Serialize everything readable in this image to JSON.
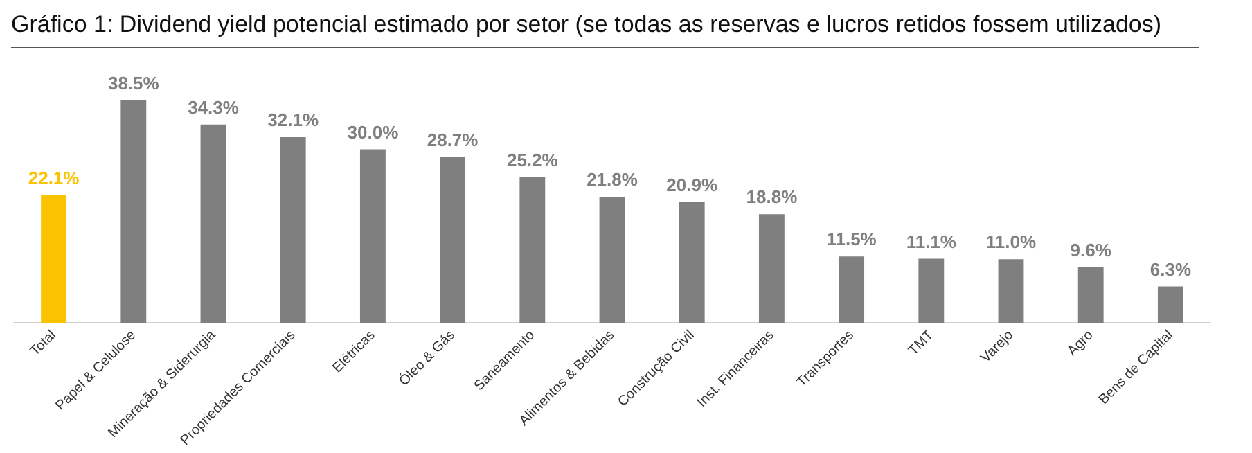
{
  "chart_data": {
    "type": "bar",
    "title": "Gráfico 1: Dividend yield potencial estimado por setor (se todas as reservas e lucros retidos fossem utilizados)",
    "categories": [
      "Total",
      "Papel & Celulose",
      "Mineração & Siderurgia",
      "Propriedades Comerciais",
      "Elétricas",
      "Óleo & Gás",
      "Saneamento",
      "Alimentos & Bebidas",
      "Construção Civil",
      "Inst. Financeiras",
      "Transportes",
      "TMT",
      "Varejo",
      "Agro",
      "Bens de Capital"
    ],
    "values": [
      22.1,
      38.5,
      34.3,
      32.1,
      30.0,
      28.7,
      25.2,
      21.8,
      20.9,
      18.8,
      11.5,
      11.1,
      11.0,
      9.6,
      6.3
    ],
    "value_labels": [
      "22.1%",
      "38.5%",
      "34.3%",
      "32.1%",
      "30.0%",
      "28.7%",
      "25.2%",
      "21.8%",
      "20.9%",
      "18.8%",
      "11.5%",
      "11.1%",
      "11.0%",
      "9.6%",
      "6.3%"
    ],
    "colors": [
      "#fbc200",
      "#7f7f7f",
      "#7f7f7f",
      "#7f7f7f",
      "#7f7f7f",
      "#7f7f7f",
      "#7f7f7f",
      "#7f7f7f",
      "#7f7f7f",
      "#7f7f7f",
      "#7f7f7f",
      "#7f7f7f",
      "#7f7f7f",
      "#7f7f7f",
      "#7f7f7f"
    ],
    "grid": false,
    "legend": false,
    "tick_labels": "x"
  }
}
